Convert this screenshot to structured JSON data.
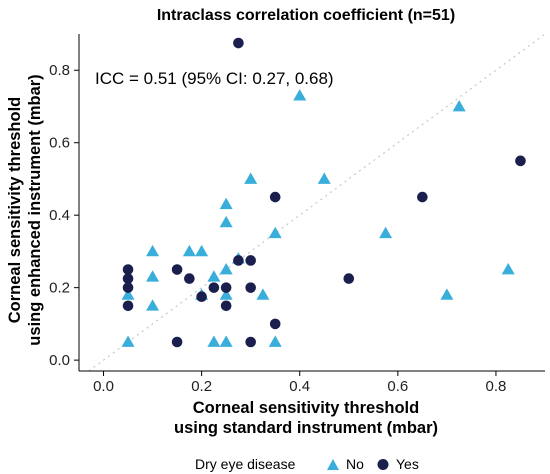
{
  "chart_data": {
    "type": "scatter",
    "title": "Intraclass correlation coefficient (n=51)",
    "xlabel": [
      "Corneal sensitivity threshold",
      "using standard instrument (mbar)"
    ],
    "ylabel": [
      "Corneal sensitivity threshold",
      "using enhanced instrument (mbar)"
    ],
    "xlim": [
      -0.05,
      0.9
    ],
    "ylim": [
      -0.03,
      0.9
    ],
    "xticks": [
      0.0,
      0.2,
      0.4,
      0.6,
      0.8
    ],
    "xtick_labels": [
      "0.0",
      "0.2",
      "0.4",
      "0.6",
      "0.8"
    ],
    "yticks": [
      0.0,
      0.2,
      0.4,
      0.6,
      0.8
    ],
    "ytick_labels": [
      "0.0",
      "0.2",
      "0.4",
      "0.6",
      "0.8"
    ],
    "annotation": "ICC = 0.51 (95% CI: 0.27, 0.68)",
    "reference_line": {
      "style": "dotted",
      "color": "#c8c8c8",
      "x": [
        -0.05,
        0.9
      ],
      "y": [
        -0.05,
        0.9
      ]
    },
    "grid": false,
    "legend": {
      "title": "Dry eye disease",
      "position": "bottom"
    },
    "series": [
      {
        "name": "No",
        "marker": "triangle",
        "color": "#3aaedb",
        "points": [
          [
            0.05,
            0.05
          ],
          [
            0.05,
            0.18
          ],
          [
            0.1,
            0.3
          ],
          [
            0.1,
            0.23
          ],
          [
            0.1,
            0.15
          ],
          [
            0.175,
            0.3
          ],
          [
            0.2,
            0.3
          ],
          [
            0.2,
            0.18
          ],
          [
            0.225,
            0.23
          ],
          [
            0.225,
            0.05
          ],
          [
            0.25,
            0.05
          ],
          [
            0.25,
            0.43
          ],
          [
            0.25,
            0.38
          ],
          [
            0.25,
            0.25
          ],
          [
            0.25,
            0.18
          ],
          [
            0.275,
            0.28
          ],
          [
            0.3,
            0.5
          ],
          [
            0.325,
            0.18
          ],
          [
            0.35,
            0.35
          ],
          [
            0.35,
            0.05
          ],
          [
            0.4,
            0.73
          ],
          [
            0.45,
            0.5
          ],
          [
            0.575,
            0.35
          ],
          [
            0.7,
            0.18
          ],
          [
            0.725,
            0.7
          ],
          [
            0.825,
            0.25
          ]
        ]
      },
      {
        "name": "Yes",
        "marker": "circle",
        "color": "#1a1f4e",
        "points": [
          [
            0.05,
            0.25
          ],
          [
            0.05,
            0.225
          ],
          [
            0.05,
            0.2
          ],
          [
            0.05,
            0.15
          ],
          [
            0.15,
            0.25
          ],
          [
            0.15,
            0.05
          ],
          [
            0.175,
            0.225
          ],
          [
            0.2,
            0.175
          ],
          [
            0.225,
            0.2
          ],
          [
            0.25,
            0.2
          ],
          [
            0.25,
            0.15
          ],
          [
            0.275,
            0.275
          ],
          [
            0.275,
            0.875
          ],
          [
            0.3,
            0.275
          ],
          [
            0.3,
            0.2
          ],
          [
            0.3,
            0.05
          ],
          [
            0.35,
            0.45
          ],
          [
            0.35,
            0.1
          ],
          [
            0.5,
            0.225
          ],
          [
            0.65,
            0.45
          ],
          [
            0.85,
            0.55
          ]
        ]
      }
    ]
  }
}
